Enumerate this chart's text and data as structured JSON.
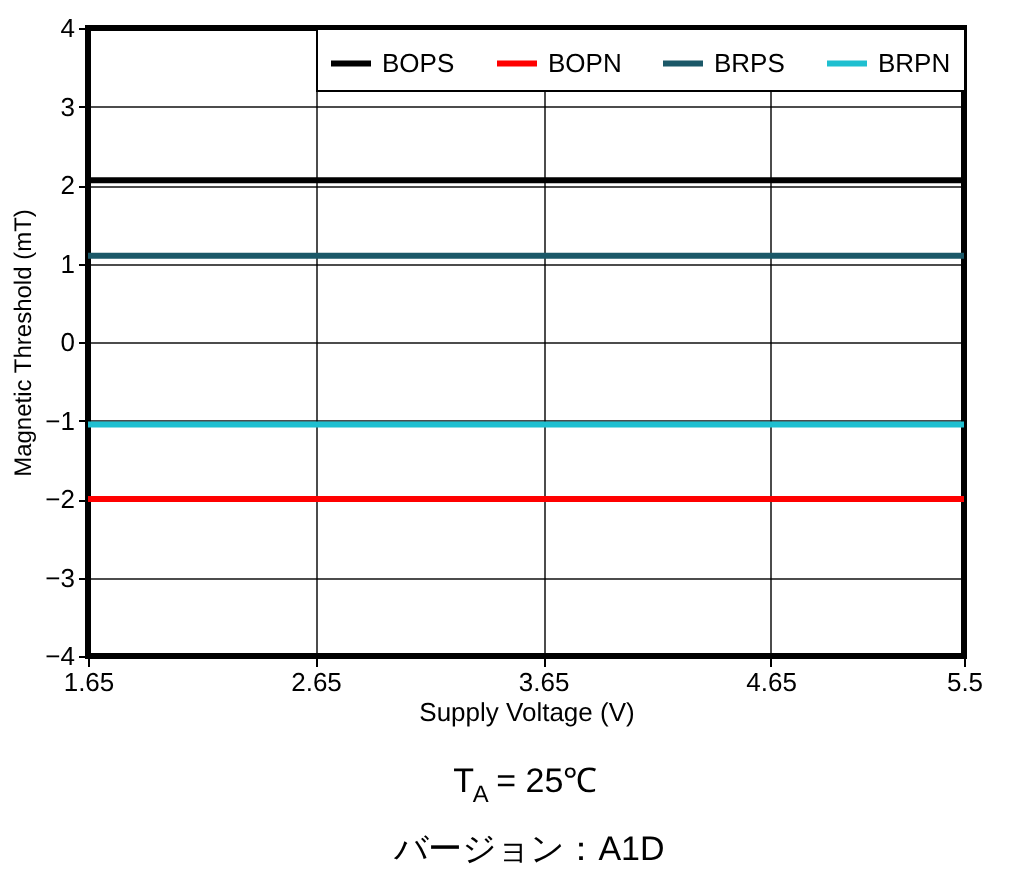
{
  "chart_data": {
    "type": "line",
    "xlabel": "Supply Voltage (V)",
    "ylabel": "Magnetic Threshold (mT)",
    "x": [
      1.65,
      5.5
    ],
    "series": [
      {
        "name": "BOPS",
        "color": "#000000",
        "values": [
          2.06,
          2.06
        ]
      },
      {
        "name": "BOPN",
        "color": "#ff0000",
        "values": [
          -2.0,
          -2.0
        ]
      },
      {
        "name": "BRPS",
        "color": "#1b5868",
        "values": [
          1.1,
          1.1
        ]
      },
      {
        "name": "BRPN",
        "color": "#1fbfd0",
        "values": [
          -1.05,
          -1.05
        ]
      }
    ],
    "xlim": [
      1.65,
      5.5
    ],
    "xticks": [
      1.65,
      2.65,
      3.65,
      4.65,
      5.5
    ],
    "ylim": [
      -4,
      4
    ],
    "yticks": [
      -4,
      -3,
      -2,
      -1,
      0,
      1,
      2,
      3,
      4
    ],
    "grid": true,
    "legend": "top right",
    "marker": "none",
    "line_style": "solid",
    "annotations": [
      "T$_{A}$ = 25℃",
      "バージョン：A1D"
    ]
  }
}
